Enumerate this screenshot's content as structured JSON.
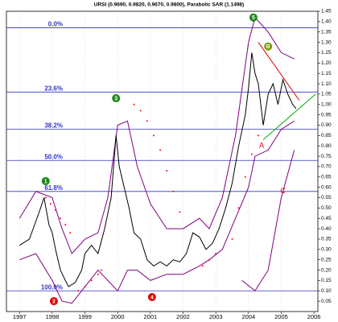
{
  "chart_data": {
    "type": "line",
    "title": "URSI (0.9690, 0.9820, 0.9670, 0.9800), Parabolic SAR (1.1498)",
    "xlim": [
      1996.6,
      2006.12
    ],
    "xticks": [
      1997,
      1998,
      1999,
      2000,
      2001,
      2002,
      2003,
      2004,
      2005,
      2006
    ],
    "ylim": [
      0,
      1.45
    ],
    "yticks": [
      1.45,
      {
        "value": 1.4,
        "label": "1.40"
      },
      1.35,
      {
        "value": 1.3,
        "label": "1.30"
      },
      1.25,
      {
        "value": 1.2,
        "label": "1.20"
      },
      1.15,
      {
        "value": 1.1,
        "label": "1.10"
      },
      1.05,
      {
        "value": 1,
        "label": "1.00"
      },
      0.95,
      {
        "value": 0.9,
        "label": "0.90"
      },
      0.85,
      {
        "value": 0.8,
        "label": "0.80"
      },
      0.75,
      {
        "value": 0.7,
        "label": "0.70"
      },
      0.65,
      {
        "value": 0.6,
        "label": "0.60"
      },
      0.55,
      {
        "value": 0.5,
        "label": "0.50"
      },
      0.45,
      {
        "value": 0.4,
        "label": "0.40"
      },
      0.35,
      {
        "value": 0.3,
        "label": "0.30"
      },
      0.25,
      {
        "value": 0.2,
        "label": "0.20"
      },
      0.15,
      {
        "value": 0.1,
        "label": "0.10"
      },
      0.05
    ],
    "grid": true,
    "series": [
      {
        "color": "#800080",
        "style": "line",
        "x": [
          1997.0,
          1997.5,
          1998.0,
          1998.3,
          1998.6,
          1999.0,
          1999.4,
          1999.7,
          2000.0,
          2000.3,
          2000.6,
          2001.0,
          2001.5,
          2002.0,
          2002.5,
          2002.8,
          2003.2,
          2003.6,
          2004.0,
          2004.2,
          2004.6,
          2005.0,
          2005.4
        ],
        "values": [
          0.45,
          0.58,
          0.55,
          0.4,
          0.28,
          0.35,
          0.38,
          0.55,
          0.9,
          0.92,
          0.7,
          0.52,
          0.4,
          0.4,
          0.45,
          0.4,
          0.55,
          0.85,
          1.3,
          1.42,
          1.35,
          1.25,
          1.22
        ]
      },
      {
        "color": "#800080",
        "style": "line",
        "x": [
          1997.0,
          1997.5,
          1998.0,
          1998.3,
          1998.6,
          1999.0,
          1999.4,
          1999.7,
          2000.0,
          2000.3,
          2000.6,
          2001.0,
          2001.5,
          2002.0,
          2002.5,
          2002.8,
          2003.2,
          2003.6,
          2004.0,
          2004.2,
          2004.6,
          2005.0,
          2005.4
        ],
        "values": [
          0.25,
          0.28,
          0.15,
          0.05,
          0.04,
          0.12,
          0.2,
          0.15,
          0.1,
          0.2,
          0.2,
          0.15,
          0.18,
          0.18,
          0.22,
          0.25,
          0.3,
          0.45,
          0.6,
          0.75,
          0.78,
          0.88,
          0.92
        ]
      },
      {
        "color": "#800080",
        "style": "line",
        "x": [
          2003.8,
          2004.2,
          2004.6,
          2005.0,
          2005.4
        ],
        "values": [
          0.15,
          0.1,
          0.2,
          0.55,
          0.78
        ]
      },
      {
        "color": "#ff0000",
        "style": "dots",
        "x": [
          1997.8,
          1997.95,
          1998.1,
          1998.25,
          1998.4,
          1998.55,
          1998.8,
          1999.0,
          1999.2,
          1999.4,
          1999.5,
          2000.5,
          2000.7,
          2000.9,
          2001.1,
          2001.3,
          2001.5,
          2001.7,
          2001.9,
          2002.6,
          2002.8,
          2003.0,
          2003.5,
          2003.7,
          2003.9,
          2004.1,
          2004.3
        ],
        "values": [
          0.55,
          0.52,
          0.49,
          0.45,
          0.42,
          0.38,
          0.1,
          0.12,
          0.15,
          0.18,
          0.2,
          1.0,
          0.97,
          0.92,
          0.85,
          0.78,
          0.68,
          0.58,
          0.48,
          0.22,
          0.25,
          0.28,
          0.35,
          0.5,
          0.65,
          0.76,
          0.85
        ]
      },
      {
        "color": "#000000",
        "style": "line",
        "x": [
          1997.0,
          1997.3,
          1997.6,
          1997.75,
          1997.9,
          1998.0,
          1998.1,
          1998.25,
          1998.4,
          1998.5,
          1998.7,
          1998.9,
          1999.0,
          1999.2,
          1999.4,
          1999.6,
          1999.8,
          1999.95,
          2000.05,
          2000.2,
          2000.35,
          2000.5,
          2000.7,
          2000.9,
          2001.1,
          2001.3,
          2001.5,
          2001.7,
          2001.9,
          2002.1,
          2002.3,
          2002.5,
          2002.7,
          2002.9,
          2003.1,
          2003.3,
          2003.5,
          2003.7,
          2003.9,
          2004.0,
          2004.1,
          2004.2,
          2004.3,
          2004.45,
          2004.6,
          2004.75,
          2004.9,
          2005.05,
          2005.2,
          2005.35,
          2005.45
        ],
        "values": [
          0.32,
          0.35,
          0.48,
          0.55,
          0.42,
          0.38,
          0.3,
          0.2,
          0.15,
          0.12,
          0.14,
          0.2,
          0.28,
          0.32,
          0.28,
          0.4,
          0.55,
          0.85,
          0.7,
          0.6,
          0.5,
          0.38,
          0.35,
          0.25,
          0.22,
          0.24,
          0.22,
          0.25,
          0.24,
          0.28,
          0.38,
          0.36,
          0.3,
          0.33,
          0.4,
          0.5,
          0.62,
          0.8,
          0.95,
          1.08,
          1.25,
          1.15,
          1.1,
          0.9,
          1.05,
          1.1,
          1.0,
          1.12,
          1.05,
          1.0,
          0.98
        ]
      }
    ],
    "fib_levels": [
      {
        "value": 1.37,
        "label": "0.0%"
      },
      {
        "value": 1.06,
        "label": "23.6%"
      },
      {
        "value": 0.88,
        "label": "38.2%"
      },
      {
        "value": 0.73,
        "label": "50.0%"
      },
      {
        "value": 0.58,
        "label": "61.8%"
      },
      {
        "value": 0.1,
        "label": "100.0%"
      }
    ],
    "lines": [
      {
        "color": "#dd0000",
        "x": [
          2004.3,
          2005.55
        ],
        "y": [
          1.3,
          1.02
        ]
      },
      {
        "color": "#00aa00",
        "x": [
          2004.45,
          2006.05
        ],
        "y": [
          0.83,
          1.05
        ]
      }
    ],
    "annotations": [
      {
        "text": "1",
        "x": 1997.8,
        "y": 0.63,
        "color": "#1a8a1a",
        "circle": true
      },
      {
        "text": "2",
        "x": 1998.05,
        "y": 0.05,
        "color": "#dd0000",
        "circle": true
      },
      {
        "text": "3",
        "x": 1999.95,
        "y": 1.03,
        "color": "#1a8a1a",
        "circle": true
      },
      {
        "text": "4",
        "x": 2001.05,
        "y": 0.07,
        "color": "#dd0000",
        "circle": true
      },
      {
        "text": "5",
        "x": 2004.15,
        "y": 1.42,
        "color": "#1a8a1a",
        "circle": true
      },
      {
        "text": "B",
        "x": 2004.6,
        "y": 1.28,
        "color": "#7a9a00",
        "circle": true
      },
      {
        "text": "A",
        "x": 2004.4,
        "y": 0.8,
        "color": "#dd0000",
        "circle": false
      },
      {
        "text": "C",
        "x": 2005.05,
        "y": 0.58,
        "color": "#dd0000",
        "circle": false
      }
    ]
  }
}
